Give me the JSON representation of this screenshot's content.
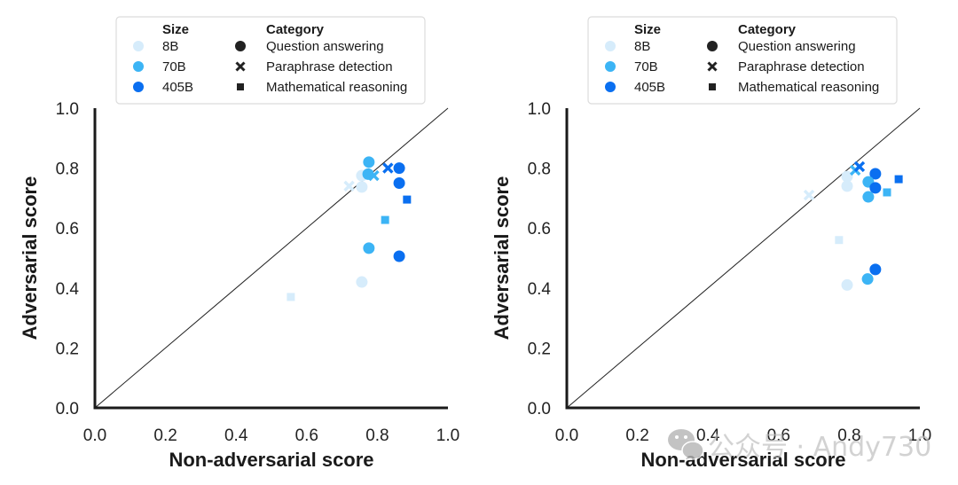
{
  "chart_data": [
    {
      "type": "scatter",
      "title": "",
      "xlabel": "Non-adversarial score",
      "ylabel": "Adversarial score",
      "xlim": [
        0.0,
        1.0
      ],
      "ylim": [
        0.0,
        1.0
      ],
      "xticks": [
        "0.0",
        "0.2",
        "0.4",
        "0.6",
        "0.8",
        "1.0"
      ],
      "yticks": [
        "0.0",
        "0.2",
        "0.4",
        "0.6",
        "0.8",
        "1.0"
      ],
      "grid": false,
      "reference_line": "y = x",
      "legend_position": "top",
      "points": [
        {
          "size": "8B",
          "category": "Paraphrase detection",
          "x": 0.72,
          "y": 0.74
        },
        {
          "size": "8B",
          "category": "Question answering",
          "x": 0.756,
          "y": 0.775
        },
        {
          "size": "8B",
          "category": "Question answering",
          "x": 0.756,
          "y": 0.737
        },
        {
          "size": "70B",
          "category": "Question answering",
          "x": 0.776,
          "y": 0.82
        },
        {
          "size": "70B",
          "category": "Question answering",
          "x": 0.774,
          "y": 0.78
        },
        {
          "size": "70B",
          "category": "Paraphrase detection",
          "x": 0.79,
          "y": 0.775
        },
        {
          "size": "405B",
          "category": "Paraphrase detection",
          "x": 0.83,
          "y": 0.8
        },
        {
          "size": "405B",
          "category": "Question answering",
          "x": 0.862,
          "y": 0.8
        },
        {
          "size": "405B",
          "category": "Question answering",
          "x": 0.862,
          "y": 0.75
        },
        {
          "size": "405B",
          "category": "Mathematical reasoning",
          "x": 0.884,
          "y": 0.695
        },
        {
          "size": "70B",
          "category": "Mathematical reasoning",
          "x": 0.822,
          "y": 0.627
        },
        {
          "size": "70B",
          "category": "Question answering",
          "x": 0.776,
          "y": 0.533
        },
        {
          "size": "405B",
          "category": "Question answering",
          "x": 0.862,
          "y": 0.506
        },
        {
          "size": "8B",
          "category": "Question answering",
          "x": 0.756,
          "y": 0.42
        },
        {
          "size": "8B",
          "category": "Mathematical reasoning",
          "x": 0.555,
          "y": 0.37
        }
      ]
    },
    {
      "type": "scatter",
      "title": "",
      "xlabel": "Non-adversarial score",
      "ylabel": "Adversarial score",
      "xlim": [
        0.0,
        1.0
      ],
      "ylim": [
        0.0,
        1.0
      ],
      "xticks": [
        "0.0",
        "0.2",
        "0.4",
        "0.6",
        "0.8",
        "1.0"
      ],
      "yticks": [
        "0.0",
        "0.2",
        "0.4",
        "0.6",
        "0.8",
        "1.0"
      ],
      "grid": false,
      "reference_line": "y = x",
      "legend_position": "top",
      "points": [
        {
          "size": "8B",
          "category": "Paraphrase detection",
          "x": 0.686,
          "y": 0.71
        },
        {
          "size": "8B",
          "category": "Question answering",
          "x": 0.794,
          "y": 0.772
        },
        {
          "size": "8B",
          "category": "Question answering",
          "x": 0.794,
          "y": 0.74
        },
        {
          "size": "70B",
          "category": "Paraphrase detection",
          "x": 0.817,
          "y": 0.793
        },
        {
          "size": "405B",
          "category": "Paraphrase detection",
          "x": 0.829,
          "y": 0.805
        },
        {
          "size": "405B",
          "category": "Question answering",
          "x": 0.874,
          "y": 0.781
        },
        {
          "size": "70B",
          "category": "Question answering",
          "x": 0.854,
          "y": 0.754
        },
        {
          "size": "405B",
          "category": "Question answering",
          "x": 0.874,
          "y": 0.734
        },
        {
          "size": "70B",
          "category": "Mathematical reasoning",
          "x": 0.907,
          "y": 0.719
        },
        {
          "size": "70B",
          "category": "Question answering",
          "x": 0.854,
          "y": 0.704
        },
        {
          "size": "405B",
          "category": "Mathematical reasoning",
          "x": 0.94,
          "y": 0.763
        },
        {
          "size": "8B",
          "category": "Mathematical reasoning",
          "x": 0.771,
          "y": 0.56
        },
        {
          "size": "405B",
          "category": "Question answering",
          "x": 0.874,
          "y": 0.462
        },
        {
          "size": "70B",
          "category": "Question answering",
          "x": 0.852,
          "y": 0.43
        },
        {
          "size": "8B",
          "category": "Question answering",
          "x": 0.794,
          "y": 0.41
        }
      ]
    }
  ],
  "legend": {
    "size_title": "Size",
    "category_title": "Category",
    "sizes": [
      {
        "label": "8B",
        "color": "#d6ecfb"
      },
      {
        "label": "70B",
        "color": "#3cb4f5"
      },
      {
        "label": "405B",
        "color": "#0a6ff0"
      }
    ],
    "categories": [
      {
        "label": "Question answering",
        "marker": "circle"
      },
      {
        "label": "Paraphrase detection",
        "marker": "cross"
      },
      {
        "label": "Mathematical reasoning",
        "marker": "square"
      }
    ]
  },
  "watermark": {
    "icon": "wechat-icon",
    "text": "公众号 · Andy730"
  }
}
